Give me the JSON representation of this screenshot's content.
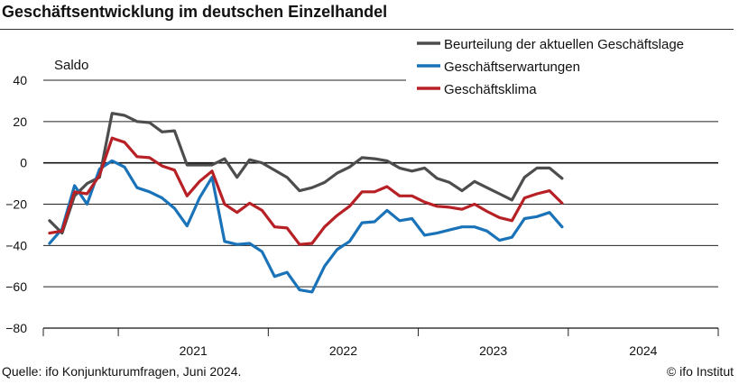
{
  "title": "Geschäftsentwicklung im deutschen Einzelhandel",
  "source": "Quelle: ifo Konjunkturumfragen, Juni 2024.",
  "copyright": "© ifo Institut",
  "chart_data": {
    "type": "line",
    "ylabel": "Saldo",
    "ylim": [
      -80,
      40
    ],
    "yticks": [
      40,
      20,
      0,
      -20,
      -40,
      -60,
      -80
    ],
    "ytick_labels": [
      "40",
      "20",
      "0",
      "−20",
      "−40",
      "−60",
      "−80"
    ],
    "x_start": "2020-07",
    "x_end": "2024-12",
    "year_labels": [
      "2021",
      "2022",
      "2023",
      "2024"
    ],
    "legend_position": "top-right",
    "series": [
      {
        "name": "Beurteilung der aktuellen Geschäftslage",
        "color": "#4d4d4d",
        "start": "2020-07",
        "values": [
          -28,
          -34,
          -16,
          -10,
          -7,
          24,
          23,
          20,
          19.5,
          15,
          15.5,
          -1,
          -1,
          -1,
          2,
          -7,
          1.5,
          0,
          -3.5,
          -7,
          -13.5,
          -12,
          -9.5,
          -5,
          -2,
          2.5,
          2,
          1,
          -2.5,
          -4,
          -2.5,
          -7.5,
          -9.5,
          -13.5,
          -9,
          -12,
          -15,
          -18,
          -7,
          -2.5,
          -2.5,
          -7.5
        ]
      },
      {
        "name": "Geschäftserwartungen",
        "color": "#1a73b8",
        "start": "2020-07",
        "values": [
          -39,
          -32,
          -11,
          -20,
          -3,
          1,
          -2,
          -12,
          -14,
          -17,
          -22,
          -30.5,
          -17,
          -7,
          -38,
          -39.5,
          -39,
          -43,
          -55,
          -53,
          -61.5,
          -62.5,
          -50,
          -42,
          -38,
          -29,
          -28.5,
          -23,
          -28,
          -27,
          -35,
          -34,
          -32.5,
          -31,
          -31,
          -33,
          -37.5,
          -36,
          -27,
          -26,
          -24,
          -31
        ]
      },
      {
        "name": "Geschäftsklima",
        "color": "#b72025",
        "start": "2020-07",
        "values": [
          -34,
          -33,
          -14,
          -15,
          -6,
          12,
          10,
          3,
          2.5,
          -1.5,
          -3.5,
          -16,
          -9,
          -4,
          -20,
          -24,
          -19.5,
          -23,
          -31,
          -31.5,
          -39.5,
          -39,
          -31,
          -25.5,
          -21,
          -14,
          -14,
          -11.5,
          -16,
          -16,
          -19,
          -21,
          -21.5,
          -22.5,
          -20,
          -23.5,
          -26.5,
          -28,
          -17,
          -15,
          -13.5,
          -19.5
        ]
      }
    ]
  }
}
